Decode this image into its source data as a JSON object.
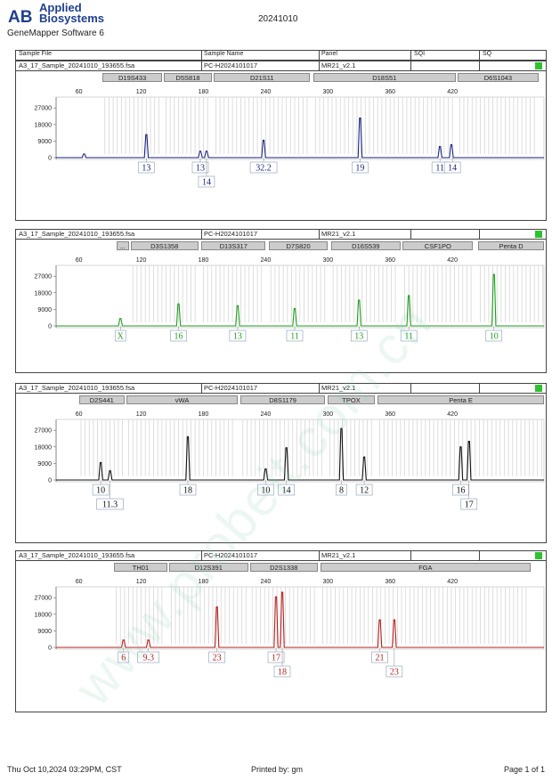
{
  "brand": {
    "name_line1": "Applied",
    "name_line2": "Biosystems",
    "software": "GeneMapper Software 6"
  },
  "report_title": "20241010",
  "columns": {
    "sample_file": "Sample File",
    "sample_name": "Sample Name",
    "panel": "Panel",
    "sqi": "SQI",
    "sq": "SQ"
  },
  "footer": {
    "datetime": "Thu Oct 10,2024 03:29PM, CST",
    "printed_by": "Printed by: gm",
    "page": "Page 1 of 1"
  },
  "watermark": "www.probeit.com.cn",
  "colors": {
    "blue": "#1a237e",
    "green": "#1e9e1e",
    "black": "#111111",
    "red": "#b71c1c",
    "status_ok": "#2fc12f"
  },
  "axis": {
    "x_ticks": [
      "60",
      "120",
      "180",
      "240",
      "300",
      "360",
      "420"
    ],
    "y_ticks": [
      "27000",
      "18000",
      "9000",
      "0"
    ]
  },
  "panels": [
    {
      "file": "A3_17_Sample_20241010_193655.fsa",
      "name": "PC-H2024101017",
      "panel": "MR21_v2.1",
      "dye": "blue",
      "markers": [
        {
          "name": "D19S433",
          "from": 83,
          "to": 140
        },
        {
          "name": "D5S818",
          "from": 142,
          "to": 188
        },
        {
          "name": "D21S11",
          "from": 190,
          "to": 283
        },
        {
          "name": "D18S51",
          "from": 286,
          "to": 423
        },
        {
          "name": "D6S1043",
          "from": 425,
          "to": 503
        }
      ],
      "peaks": [
        {
          "x": 65,
          "h": 2000
        },
        {
          "x": 125,
          "h": 12500
        },
        {
          "x": 177,
          "h": 3500
        },
        {
          "x": 183,
          "h": 3500
        },
        {
          "x": 238,
          "h": 9500
        },
        {
          "x": 331,
          "h": 21500
        },
        {
          "x": 408,
          "h": 6000
        },
        {
          "x": 419,
          "h": 7000
        }
      ],
      "calls": [
        {
          "label": "13",
          "x": 125,
          "row": 1
        },
        {
          "label": "13",
          "x": 177,
          "row": 1
        },
        {
          "label": "14",
          "x": 183,
          "row": 2
        },
        {
          "label": "32.2",
          "x": 238,
          "row": 1
        },
        {
          "label": "19",
          "x": 331,
          "row": 1
        },
        {
          "label": "11",
          "x": 408,
          "row": 1
        },
        {
          "label": "14",
          "x": 420,
          "row": 1
        }
      ]
    },
    {
      "file": "A3_17_Sample_20241010_193655.fsa",
      "name": "PC-H2024101017",
      "panel": "MR21_v2.1",
      "dye": "green",
      "markers": [
        {
          "name": "...",
          "from": 96,
          "to": 108
        },
        {
          "name": "D3S1358",
          "from": 110,
          "to": 175
        },
        {
          "name": "D13S317",
          "from": 178,
          "to": 240
        },
        {
          "name": "D7S820",
          "from": 243,
          "to": 300
        },
        {
          "name": "D16S539",
          "from": 303,
          "to": 370
        },
        {
          "name": "CSF1PO",
          "from": 372,
          "to": 440
        },
        {
          "name": "Penta D",
          "from": 445,
          "to": 610
        }
      ],
      "peaks": [
        {
          "x": 100,
          "h": 4000
        },
        {
          "x": 156,
          "h": 12000
        },
        {
          "x": 213,
          "h": 11000
        },
        {
          "x": 268,
          "h": 9500
        },
        {
          "x": 330,
          "h": 14000
        },
        {
          "x": 378,
          "h": 16500
        },
        {
          "x": 460,
          "h": 28000
        }
      ],
      "calls": [
        {
          "label": "X",
          "x": 100,
          "row": 1
        },
        {
          "label": "16",
          "x": 156,
          "row": 1
        },
        {
          "label": "13",
          "x": 213,
          "row": 1
        },
        {
          "label": "11",
          "x": 268,
          "row": 1
        },
        {
          "label": "13",
          "x": 330,
          "row": 1
        },
        {
          "label": "11",
          "x": 378,
          "row": 1
        },
        {
          "label": "10",
          "x": 460,
          "row": 1
        }
      ]
    },
    {
      "file": "A3_17_Sample_20241010_193655.fsa",
      "name": "PC-H2024101017",
      "panel": "MR21_v2.1",
      "dye": "black",
      "markers": [
        {
          "name": "D2S441",
          "from": 60,
          "to": 104
        },
        {
          "name": "vWA",
          "from": 106,
          "to": 213
        },
        {
          "name": "D8S1179",
          "from": 216,
          "to": 297
        },
        {
          "name": "TPOX",
          "from": 300,
          "to": 345
        },
        {
          "name": "Penta E",
          "from": 348,
          "to": 535
        }
      ],
      "peaks": [
        {
          "x": 81,
          "h": 9500
        },
        {
          "x": 90,
          "h": 5000
        },
        {
          "x": 165,
          "h": 23500
        },
        {
          "x": 240,
          "h": 6000
        },
        {
          "x": 260,
          "h": 17500
        },
        {
          "x": 313,
          "h": 28000
        },
        {
          "x": 335,
          "h": 12500
        },
        {
          "x": 428,
          "h": 18000
        },
        {
          "x": 436,
          "h": 21000
        }
      ],
      "calls": [
        {
          "label": "10",
          "x": 81,
          "row": 1
        },
        {
          "label": "11.3",
          "x": 90,
          "row": 2
        },
        {
          "label": "18",
          "x": 165,
          "row": 1
        },
        {
          "label": "10",
          "x": 240,
          "row": 1
        },
        {
          "label": "14",
          "x": 260,
          "row": 1
        },
        {
          "label": "8",
          "x": 313,
          "row": 1
        },
        {
          "label": "12",
          "x": 335,
          "row": 1
        },
        {
          "label": "16",
          "x": 428,
          "row": 1
        },
        {
          "label": "17",
          "x": 436,
          "row": 2
        }
      ]
    },
    {
      "file": "A3_17_Sample_20241010_193655.fsa",
      "name": "PC-H2024101017",
      "panel": "MR21_v2.1",
      "dye": "red",
      "markers": [
        {
          "name": "TH01",
          "from": 94,
          "to": 145
        },
        {
          "name": "D12S391",
          "from": 147,
          "to": 223
        },
        {
          "name": "D2S1338",
          "from": 225,
          "to": 290
        },
        {
          "name": "FGA",
          "from": 293,
          "to": 495
        }
      ],
      "peaks": [
        {
          "x": 103,
          "h": 4000
        },
        {
          "x": 127,
          "h": 4000
        },
        {
          "x": 193,
          "h": 22000
        },
        {
          "x": 250,
          "h": 27500
        },
        {
          "x": 256,
          "h": 30000
        },
        {
          "x": 350,
          "h": 15000
        },
        {
          "x": 364,
          "h": 15000
        }
      ],
      "calls": [
        {
          "label": "6",
          "x": 103,
          "row": 1
        },
        {
          "label": "9.3",
          "x": 127,
          "row": 1
        },
        {
          "label": "23",
          "x": 193,
          "row": 1
        },
        {
          "label": "17",
          "x": 250,
          "row": 1
        },
        {
          "label": "18",
          "x": 256,
          "row": 2
        },
        {
          "label": "21",
          "x": 350,
          "row": 1
        },
        {
          "label": "23",
          "x": 364,
          "row": 2
        }
      ]
    }
  ]
}
